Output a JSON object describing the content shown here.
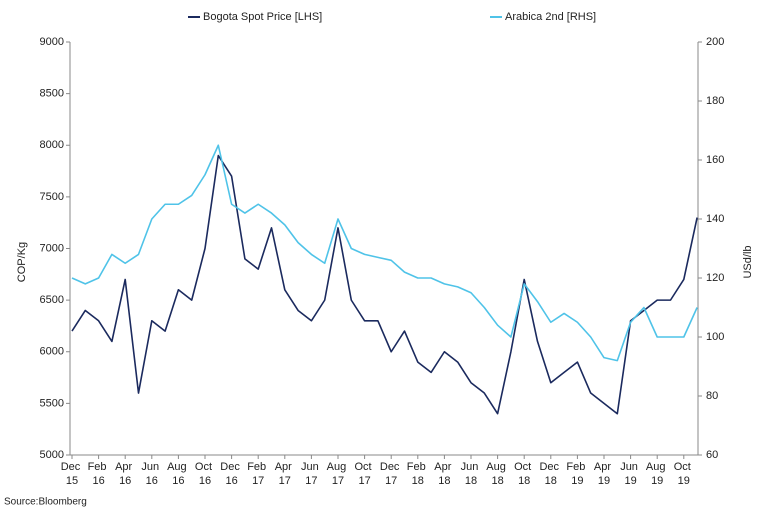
{
  "chart_data": {
    "type": "line",
    "source": "Source:Bloomberg",
    "ylabel": "COP/Kg",
    "y2label": "USd/lb",
    "ylim": [
      5000,
      9000
    ],
    "yticks": [
      5000,
      5500,
      6000,
      6500,
      7000,
      7500,
      8000,
      8500,
      9000
    ],
    "y2lim": [
      60,
      200
    ],
    "y2ticks": [
      60,
      80,
      100,
      120,
      140,
      160,
      180,
      200
    ],
    "legend": "top",
    "categories": [
      "Dec 15",
      null,
      "Feb 16",
      null,
      "Apr 16",
      null,
      "Jun 16",
      null,
      "Aug 16",
      null,
      "Oct 16",
      null,
      "Dec 16",
      null,
      "Feb 17",
      null,
      "Apr 17",
      null,
      "Jun 17",
      null,
      "Aug 17",
      null,
      "Oct 17",
      null,
      "Dec 17",
      null,
      "Feb 18",
      null,
      "Apr 18",
      null,
      "Jun 18",
      null,
      "Aug 18",
      null,
      "Oct 18",
      null,
      "Dec 18",
      null,
      "Feb 19",
      null,
      "Apr 19",
      null,
      "Jun 19",
      null,
      "Aug 19",
      null,
      "Oct 19",
      null
    ],
    "series": [
      {
        "name": "Bogota Spot Price [LHS]",
        "color": "#1b2a5e",
        "axis": "y",
        "values": [
          6200,
          6400,
          6300,
          6100,
          6700,
          5600,
          6300,
          6200,
          6600,
          6500,
          7000,
          7900,
          7700,
          6900,
          6800,
          7200,
          6600,
          6400,
          6300,
          6500,
          7200,
          6500,
          6300,
          6300,
          6000,
          6200,
          5900,
          5800,
          6000,
          5900,
          5700,
          5600,
          5400,
          6000,
          6700,
          6100,
          5700,
          5800,
          5900,
          5600,
          5500,
          5400,
          6300,
          6400,
          6500,
          6500,
          6700,
          7300
        ]
      },
      {
        "name": "Arabica 2nd [RHS]",
        "color": "#4fc3e8",
        "axis": "y2",
        "values": [
          120,
          118,
          120,
          128,
          125,
          128,
          140,
          145,
          145,
          148,
          155,
          165,
          145,
          142,
          145,
          142,
          138,
          132,
          128,
          125,
          140,
          130,
          128,
          127,
          126,
          122,
          120,
          120,
          118,
          117,
          115,
          110,
          104,
          100,
          118,
          112,
          105,
          108,
          105,
          100,
          93,
          92,
          105,
          110,
          100,
          100,
          100,
          110
        ]
      }
    ]
  }
}
